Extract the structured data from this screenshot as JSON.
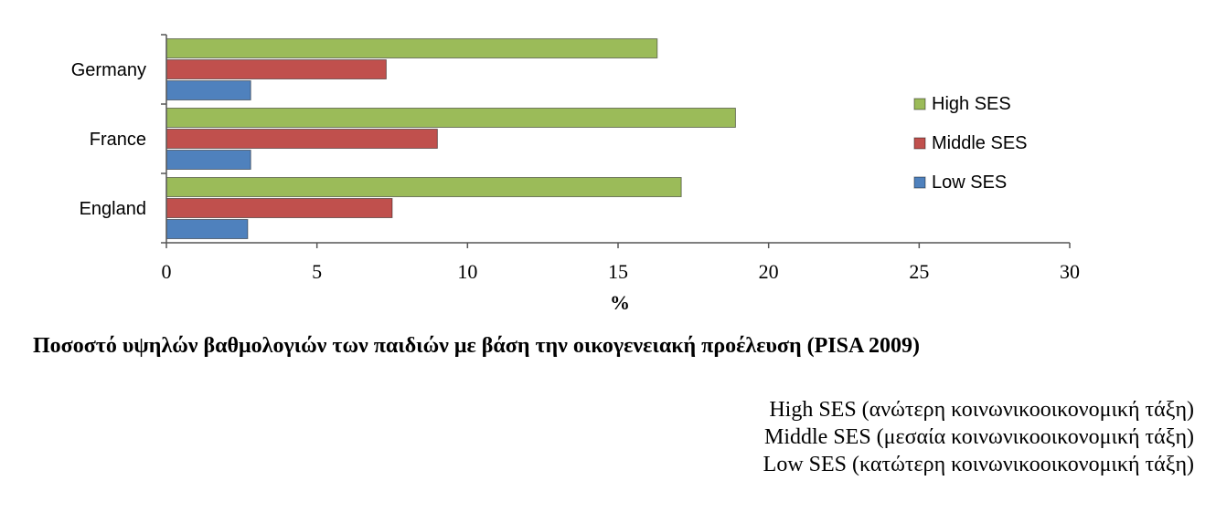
{
  "chart_data": {
    "type": "bar",
    "orientation": "horizontal",
    "categories": [
      "Germany",
      "France",
      "England"
    ],
    "series": [
      {
        "name": "High SES",
        "values": [
          16.3,
          18.9,
          17.1
        ],
        "color": "#9BBB59"
      },
      {
        "name": "Middle SES",
        "values": [
          7.3,
          9.0,
          7.5
        ],
        "color": "#C0504D"
      },
      {
        "name": "Low SES",
        "values": [
          2.8,
          2.8,
          2.7
        ],
        "color": "#4F81BD"
      }
    ],
    "xlabel": "%",
    "xlim": [
      0,
      30
    ],
    "xticks": [
      "0",
      "5",
      "10",
      "15",
      "20",
      "25",
      "30"
    ],
    "grid": false,
    "legend_position": "right"
  },
  "caption": "Ποσοστό υψηλών βαθμολογιών των παιδιών με βάση την οικογενειακή προέλευση (PISA 2009)",
  "notes": [
    "High SES (ανώτερη κοινωνικοοικονομική τάξη)",
    "Middle SES (μεσαία κοινωνικοοικονομική τάξη)",
    "Low SES (κατώτερη κοινωνικοοικονομική τάξη)"
  ]
}
